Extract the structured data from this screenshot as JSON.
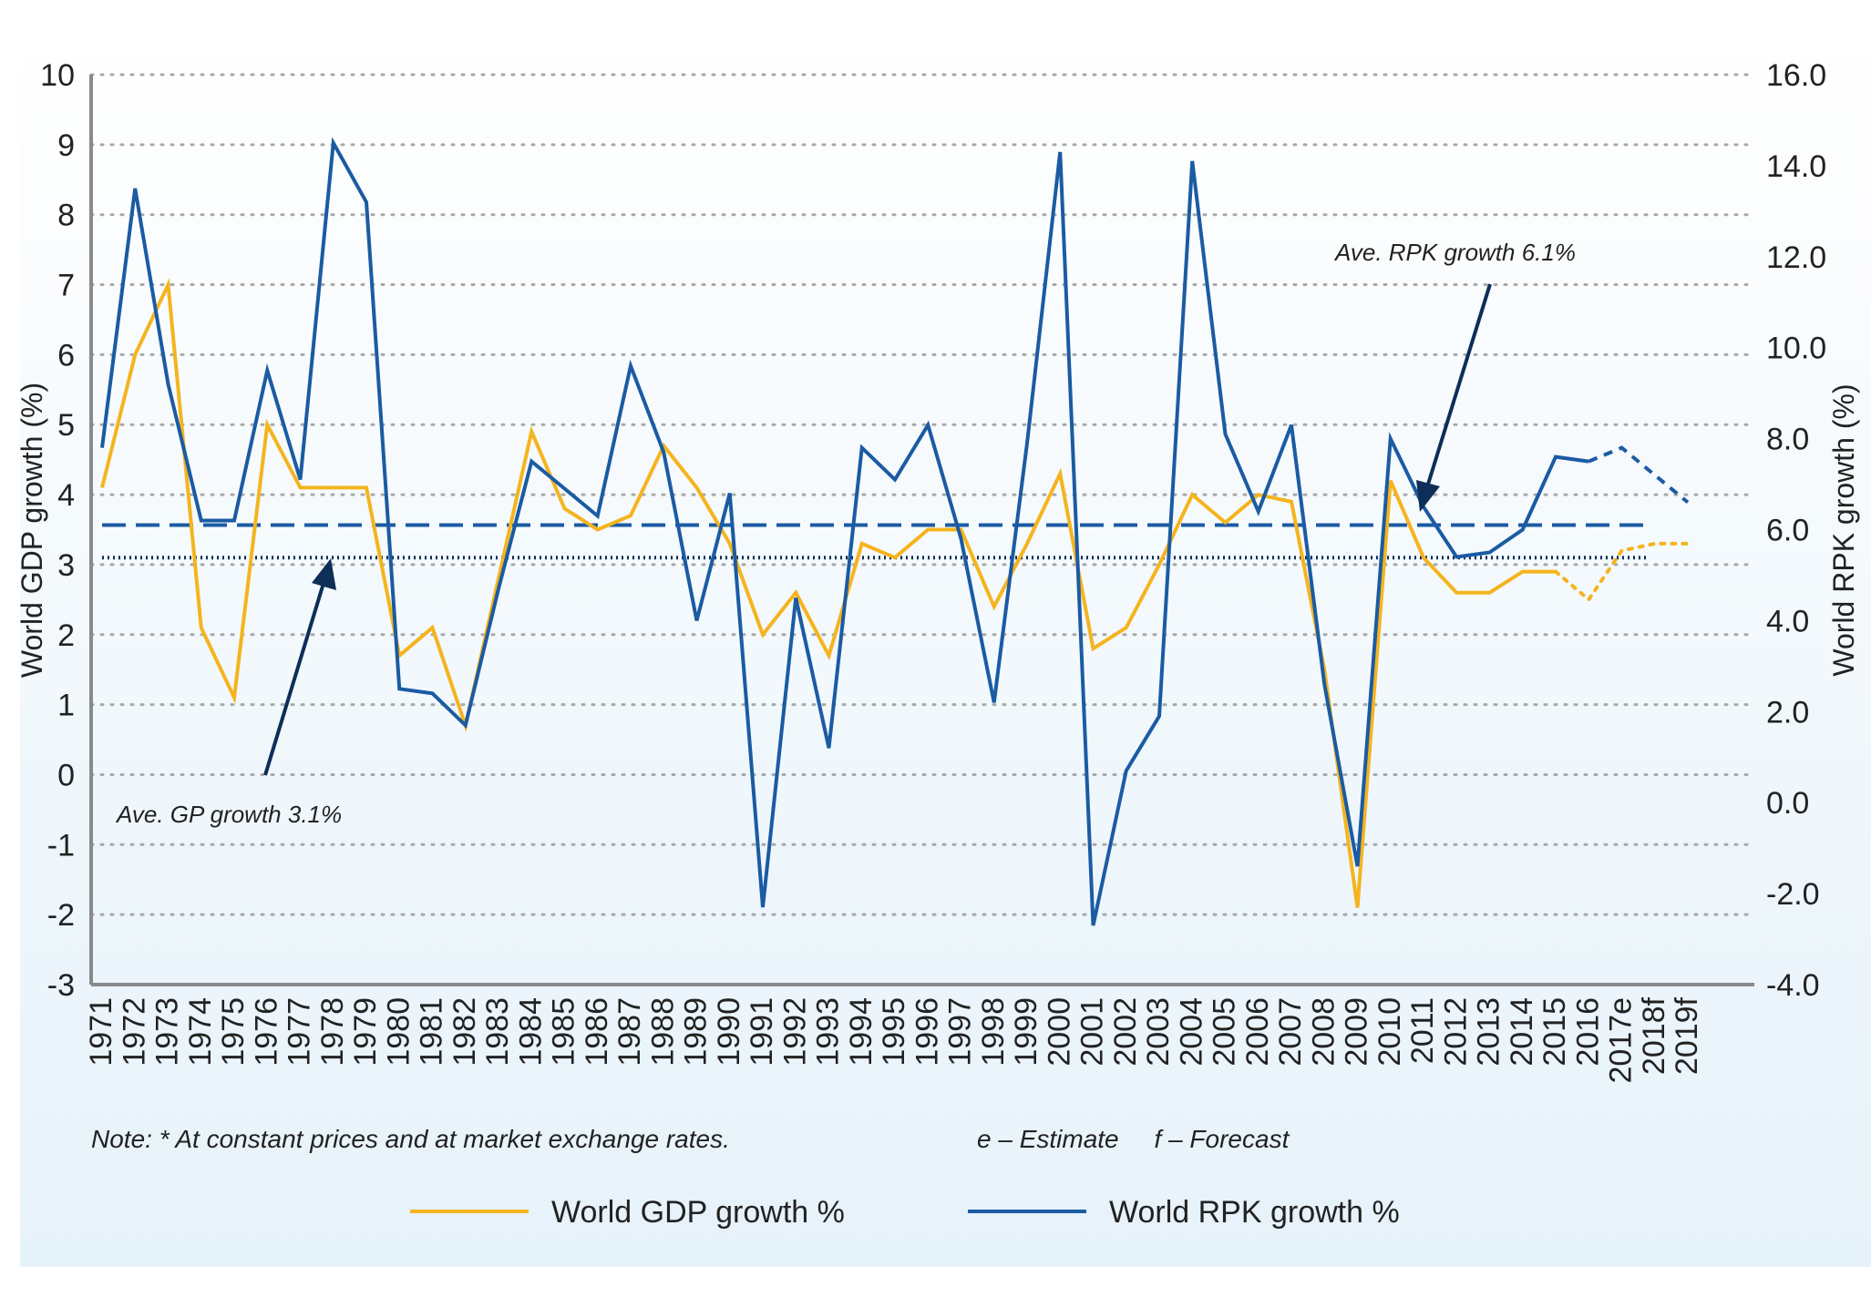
{
  "chart_data": {
    "type": "line",
    "categories": [
      "1971",
      "1972",
      "1973",
      "1974",
      "1975",
      "1976",
      "1977",
      "1978",
      "1979",
      "1980",
      "1981",
      "1982",
      "1983",
      "1984",
      "1985",
      "1986",
      "1987",
      "1988",
      "1989",
      "1990",
      "1991",
      "1992",
      "1993",
      "1994",
      "1995",
      "1996",
      "1997",
      "1998",
      "1999",
      "2000",
      "2001",
      "2002",
      "2003",
      "2004",
      "2005",
      "2006",
      "2007",
      "2008",
      "2009",
      "2010",
      "2011",
      "2012",
      "2013",
      "2014",
      "2015",
      "2016",
      "2017e",
      "2018f",
      "2019f"
    ],
    "series": [
      {
        "name": "World GDP growth %",
        "axis": "left",
        "color": "#f5b41e",
        "values": [
          4.1,
          6.0,
          7.0,
          2.1,
          1.1,
          5.0,
          4.1,
          4.1,
          4.1,
          1.7,
          2.1,
          0.7,
          2.8,
          4.9,
          3.8,
          3.5,
          3.7,
          4.7,
          4.1,
          3.3,
          2.0,
          2.6,
          1.7,
          3.3,
          3.1,
          3.5,
          3.5,
          2.4,
          3.3,
          4.3,
          1.8,
          2.1,
          3.0,
          4.0,
          3.6,
          4.0,
          3.9,
          1.5,
          -1.9,
          4.2,
          3.1,
          2.6,
          2.6,
          2.9,
          2.9,
          2.5,
          3.2,
          3.3,
          3.3
        ],
        "projected_from": "2015"
      },
      {
        "name": "World RPK growth %",
        "axis": "right",
        "color": "#1b5ba3",
        "values": [
          7.8,
          13.5,
          9.2,
          6.2,
          6.2,
          9.5,
          7.1,
          14.5,
          13.2,
          2.5,
          2.4,
          1.7,
          4.7,
          7.5,
          6.9,
          6.3,
          9.6,
          7.7,
          4.0,
          6.8,
          -2.3,
          4.5,
          1.2,
          7.8,
          7.1,
          8.3,
          5.8,
          2.2,
          7.9,
          14.3,
          -2.7,
          0.7,
          1.9,
          14.1,
          8.1,
          6.4,
          8.3,
          2.6,
          -1.4,
          8.0,
          6.5,
          5.4,
          5.5,
          6.0,
          7.6,
          7.5,
          7.8,
          7.2,
          6.6
        ],
        "projected_from": "2016"
      }
    ],
    "averages": [
      {
        "label": "Ave. RPK growth 6.1%",
        "axis": "right",
        "value": 6.1,
        "style": "dashed",
        "color": "#1b5ba3"
      },
      {
        "label": "Ave. GP growth 3.1%",
        "axis": "left",
        "value": 3.1,
        "style": "dotted",
        "color": "#0d2e57"
      }
    ],
    "left_axis": {
      "label": "World GDP growth (%)",
      "ylim": [
        -3,
        10
      ],
      "ticks": [
        "10",
        "9",
        "8",
        "7",
        "6",
        "5",
        "4",
        "3",
        "2",
        "1",
        "0",
        "-1",
        "-2",
        "-3"
      ]
    },
    "right_axis": {
      "label": "World RPK growth (%)",
      "ylim": [
        -4,
        16
      ],
      "ticks": [
        "16.0",
        "14.0",
        "12.0",
        "10.0",
        "8.0",
        "6.0",
        "4.0",
        "2.0",
        "0.0",
        "-2.0",
        "-4.0"
      ]
    },
    "grid": "horizontal dotted",
    "legend_position": "bottom"
  },
  "notes": {
    "footnote": "Note: * At constant prices and at market exchange rates.",
    "key": "e – Estimate     f – Forecast"
  }
}
